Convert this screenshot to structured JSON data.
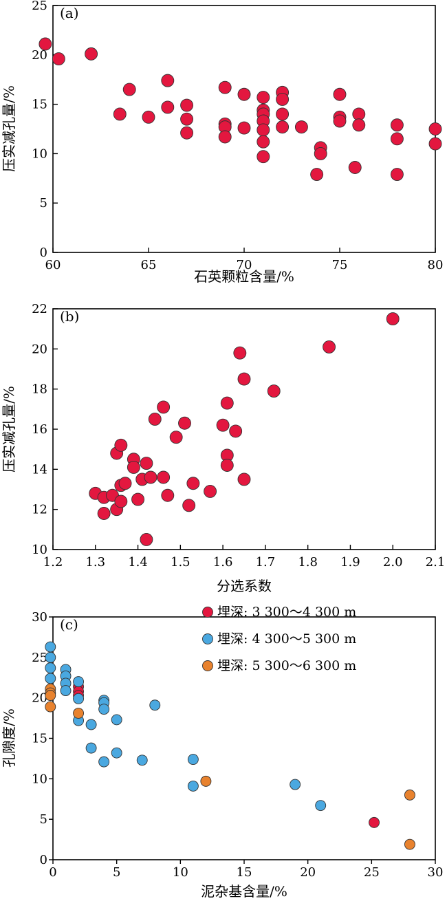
{
  "chart_data": [
    {
      "id": "a",
      "type": "scatter",
      "panel_label": "(a)",
      "xlabel": "石英颗粒含量/%",
      "ylabel": "压实减孔量/%",
      "xlim": [
        60,
        80
      ],
      "ylim": [
        0,
        25
      ],
      "xticks": [
        60,
        65,
        70,
        75,
        80
      ],
      "yticks": [
        0,
        5,
        10,
        15,
        20,
        25
      ],
      "grid": false,
      "series": [
        {
          "color": "#e3173f",
          "points": [
            [
              59.6,
              21.1
            ],
            [
              60.3,
              19.6
            ],
            [
              62.0,
              20.1
            ],
            [
              63.5,
              14.0
            ],
            [
              64.0,
              16.5
            ],
            [
              65.0,
              13.7
            ],
            [
              66.0,
              17.4
            ],
            [
              66.0,
              14.7
            ],
            [
              67.0,
              14.9
            ],
            [
              67.0,
              13.5
            ],
            [
              67.0,
              12.1
            ],
            [
              69.0,
              16.7
            ],
            [
              69.0,
              13.0
            ],
            [
              69.0,
              12.7
            ],
            [
              69.0,
              11.7
            ],
            [
              70.0,
              16.0
            ],
            [
              70.0,
              12.6
            ],
            [
              71.0,
              15.7
            ],
            [
              71.0,
              14.4
            ],
            [
              71.0,
              14.0
            ],
            [
              71.0,
              13.3
            ],
            [
              71.0,
              12.4
            ],
            [
              71.0,
              11.2
            ],
            [
              71.0,
              9.7
            ],
            [
              72.0,
              16.2
            ],
            [
              72.0,
              15.5
            ],
            [
              72.0,
              14.0
            ],
            [
              72.0,
              12.7
            ],
            [
              73.0,
              12.7
            ],
            [
              73.8,
              7.9
            ],
            [
              74.0,
              10.6
            ],
            [
              74.0,
              10.0
            ],
            [
              75.0,
              16.0
            ],
            [
              75.0,
              13.7
            ],
            [
              75.0,
              13.3
            ],
            [
              75.8,
              8.6
            ],
            [
              76.0,
              14.0
            ],
            [
              76.0,
              12.9
            ],
            [
              78.0,
              12.9
            ],
            [
              78.0,
              11.5
            ],
            [
              78.0,
              7.9
            ],
            [
              80.0,
              12.5
            ],
            [
              80.0,
              11.0
            ]
          ]
        }
      ]
    },
    {
      "id": "b",
      "type": "scatter",
      "panel_label": "(b)",
      "xlabel": "分选系数",
      "ylabel": "压实减孔量/%",
      "xlim": [
        1.2,
        2.1
      ],
      "ylim": [
        10,
        22
      ],
      "xticks": [
        1.2,
        1.3,
        1.4,
        1.5,
        1.6,
        1.7,
        1.8,
        1.9,
        2.0,
        2.1
      ],
      "yticks": [
        10,
        12,
        14,
        16,
        18,
        20,
        22
      ],
      "grid": false,
      "series": [
        {
          "color": "#e3173f",
          "points": [
            [
              1.3,
              12.8
            ],
            [
              1.32,
              12.6
            ],
            [
              1.32,
              11.8
            ],
            [
              1.34,
              12.7
            ],
            [
              1.35,
              14.8
            ],
            [
              1.35,
              12.0
            ],
            [
              1.36,
              15.2
            ],
            [
              1.36,
              13.2
            ],
            [
              1.36,
              12.4
            ],
            [
              1.37,
              13.3
            ],
            [
              1.39,
              14.5
            ],
            [
              1.39,
              14.1
            ],
            [
              1.4,
              12.5
            ],
            [
              1.41,
              13.5
            ],
            [
              1.42,
              14.3
            ],
            [
              1.42,
              10.5
            ],
            [
              1.43,
              13.6
            ],
            [
              1.44,
              16.5
            ],
            [
              1.46,
              17.1
            ],
            [
              1.46,
              13.6
            ],
            [
              1.47,
              12.7
            ],
            [
              1.49,
              15.6
            ],
            [
              1.51,
              16.3
            ],
            [
              1.52,
              12.2
            ],
            [
              1.53,
              13.3
            ],
            [
              1.57,
              12.9
            ],
            [
              1.6,
              16.2
            ],
            [
              1.61,
              14.7
            ],
            [
              1.61,
              14.2
            ],
            [
              1.61,
              17.3
            ],
            [
              1.63,
              15.9
            ],
            [
              1.64,
              19.8
            ],
            [
              1.65,
              18.5
            ],
            [
              1.65,
              13.5
            ],
            [
              1.72,
              17.9
            ],
            [
              1.85,
              20.1
            ],
            [
              2.0,
              21.5
            ]
          ]
        }
      ]
    },
    {
      "id": "c",
      "type": "scatter",
      "panel_label": "(c)",
      "xlabel": "泥杂基含量/%",
      "ylabel": "孔隙度/%",
      "xlim": [
        0,
        30
      ],
      "ylim": [
        0,
        30
      ],
      "xticks": [
        0,
        5,
        10,
        15,
        20,
        25,
        30
      ],
      "yticks": [
        0,
        5,
        10,
        15,
        20,
        25,
        30
      ],
      "grid": false,
      "legend_position": "top-right",
      "series": [
        {
          "name": "埋深: 3 300～4 300 m",
          "color": "#e3173f",
          "points": [
            [
              2.0,
              21.4
            ],
            [
              2.0,
              20.8
            ],
            [
              2.0,
              20.3
            ],
            [
              25.2,
              4.6
            ]
          ]
        },
        {
          "name": "埋深: 4 300～5 300 m",
          "color": "#4aa8e0",
          "points": [
            [
              -0.2,
              26.3
            ],
            [
              -0.2,
              25.0
            ],
            [
              -0.2,
              23.7
            ],
            [
              -0.2,
              22.4
            ],
            [
              1.0,
              23.5
            ],
            [
              1.0,
              22.7
            ],
            [
              1.0,
              21.8
            ],
            [
              1.0,
              20.9
            ],
            [
              2.0,
              22.0
            ],
            [
              2.0,
              19.9
            ],
            [
              2.0,
              17.2
            ],
            [
              3.0,
              16.7
            ],
            [
              3.0,
              13.8
            ],
            [
              4.0,
              19.7
            ],
            [
              4.0,
              19.4
            ],
            [
              4.0,
              18.6
            ],
            [
              4.0,
              12.1
            ],
            [
              5.0,
              17.3
            ],
            [
              5.0,
              13.2
            ],
            [
              7.0,
              12.3
            ],
            [
              8.0,
              19.1
            ],
            [
              11.0,
              12.4
            ],
            [
              11.0,
              9.1
            ],
            [
              19.0,
              9.3
            ],
            [
              21.0,
              6.7
            ]
          ]
        },
        {
          "name": "埋深: 5 300～6 300 m",
          "color": "#e8822e",
          "points": [
            [
              -0.2,
              21.1
            ],
            [
              -0.2,
              20.6
            ],
            [
              -0.2,
              20.3
            ],
            [
              -0.2,
              18.9
            ],
            [
              2.0,
              18.1
            ],
            [
              12.0,
              9.7
            ],
            [
              28.0,
              8.0
            ],
            [
              28.0,
              1.9
            ]
          ]
        }
      ]
    }
  ]
}
